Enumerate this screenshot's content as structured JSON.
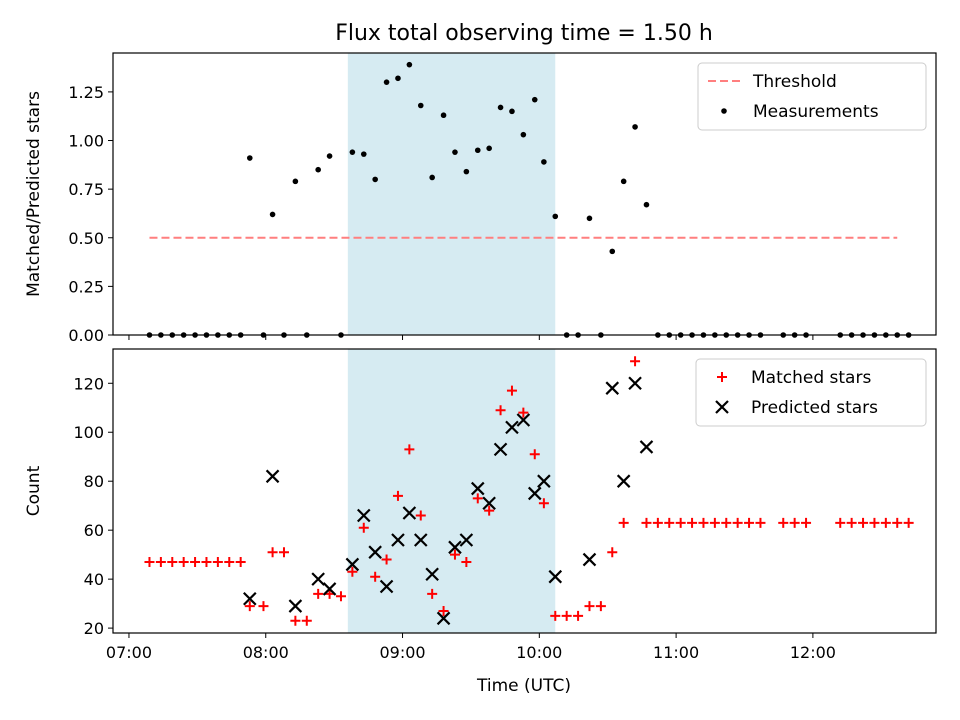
{
  "chart_data": [
    {
      "type": "scatter",
      "title": "Flux total observing time = 1.50 h",
      "xlabel": "",
      "ylabel": "Matched/Predicted stars",
      "xlim": [
        "06:53",
        "12:54"
      ],
      "ylim": [
        0,
        1.45
      ],
      "y_ticks": [
        "0.00",
        "0.25",
        "0.50",
        "0.75",
        "1.00",
        "1.25"
      ],
      "x_tick_labels_shown": false,
      "shaded_span": {
        "start": "08:36",
        "end": "10:07",
        "color": "#add8e6"
      },
      "legend_position": "upper right",
      "series": [
        {
          "name": "Threshold",
          "kind": "line",
          "style": "dashed",
          "color": "#ff7f7f",
          "x": [
            "07:09",
            "12:37"
          ],
          "y": [
            0.5,
            0.5
          ]
        },
        {
          "name": "Measurements",
          "kind": "points",
          "color": "#000000",
          "points": [
            [
              "07:09",
              0
            ],
            [
              "07:14",
              0
            ],
            [
              "07:19",
              0
            ],
            [
              "07:24",
              0
            ],
            [
              "07:29",
              0
            ],
            [
              "07:34",
              0
            ],
            [
              "07:39",
              0
            ],
            [
              "07:44",
              0
            ],
            [
              "07:49",
              0
            ],
            [
              "07:53",
              0.91
            ],
            [
              "07:59",
              0
            ],
            [
              "08:03",
              0.62
            ],
            [
              "08:08",
              0
            ],
            [
              "08:13",
              0.79
            ],
            [
              "08:18",
              0
            ],
            [
              "08:23",
              0.85
            ],
            [
              "08:28",
              0.92
            ],
            [
              "08:33",
              0
            ],
            [
              "08:38",
              0.94
            ],
            [
              "08:43",
              0.93
            ],
            [
              "08:48",
              0.8
            ],
            [
              "08:53",
              1.3
            ],
            [
              "08:58",
              1.32
            ],
            [
              "09:03",
              1.39
            ],
            [
              "09:08",
              1.18
            ],
            [
              "09:13",
              0.81
            ],
            [
              "09:18",
              1.13
            ],
            [
              "09:23",
              0.94
            ],
            [
              "09:28",
              0.84
            ],
            [
              "09:33",
              0.95
            ],
            [
              "09:38",
              0.96
            ],
            [
              "09:43",
              1.17
            ],
            [
              "09:48",
              1.15
            ],
            [
              "09:53",
              1.03
            ],
            [
              "09:58",
              1.21
            ],
            [
              "10:02",
              0.89
            ],
            [
              "10:07",
              0.61
            ],
            [
              "10:12",
              0
            ],
            [
              "10:17",
              0
            ],
            [
              "10:22",
              0.6
            ],
            [
              "10:27",
              0
            ],
            [
              "10:32",
              0.43
            ],
            [
              "10:37",
              0.79
            ],
            [
              "10:42",
              1.07
            ],
            [
              "10:47",
              0.67
            ],
            [
              "10:52",
              0
            ],
            [
              "10:57",
              0
            ],
            [
              "11:02",
              0
            ],
            [
              "11:07",
              0
            ],
            [
              "11:12",
              0
            ],
            [
              "11:17",
              0
            ],
            [
              "11:22",
              0
            ],
            [
              "11:27",
              0
            ],
            [
              "11:32",
              0
            ],
            [
              "11:37",
              0
            ],
            [
              "11:47",
              0
            ],
            [
              "11:52",
              0
            ],
            [
              "11:57",
              0
            ],
            [
              "12:12",
              0
            ],
            [
              "12:17",
              0
            ],
            [
              "12:22",
              0
            ],
            [
              "12:27",
              0
            ],
            [
              "12:32",
              0
            ],
            [
              "12:37",
              0
            ],
            [
              "12:42",
              0
            ]
          ]
        }
      ]
    },
    {
      "type": "scatter",
      "title": "",
      "xlabel": "Time (UTC)",
      "ylabel": "Count",
      "xlim": [
        "06:53",
        "12:54"
      ],
      "ylim": [
        18,
        134
      ],
      "y_ticks": [
        "20",
        "40",
        "60",
        "80",
        "100",
        "120"
      ],
      "x_ticks": [
        "07:00",
        "08:00",
        "09:00",
        "10:00",
        "11:00",
        "12:00"
      ],
      "shaded_span": {
        "start": "08:36",
        "end": "10:07",
        "color": "#add8e6"
      },
      "legend_position": "upper right",
      "series": [
        {
          "name": "Matched stars",
          "marker": "+",
          "color": "#ff0000",
          "points": [
            [
              "07:09",
              47
            ],
            [
              "07:14",
              47
            ],
            [
              "07:19",
              47
            ],
            [
              "07:24",
              47
            ],
            [
              "07:29",
              47
            ],
            [
              "07:34",
              47
            ],
            [
              "07:39",
              47
            ],
            [
              "07:44",
              47
            ],
            [
              "07:49",
              47
            ],
            [
              "07:53",
              29
            ],
            [
              "07:59",
              29
            ],
            [
              "08:03",
              51
            ],
            [
              "08:08",
              51
            ],
            [
              "08:13",
              23
            ],
            [
              "08:18",
              23
            ],
            [
              "08:23",
              34
            ],
            [
              "08:28",
              34
            ],
            [
              "08:33",
              33
            ],
            [
              "08:38",
              43
            ],
            [
              "08:43",
              61
            ],
            [
              "08:48",
              41
            ],
            [
              "08:53",
              48
            ],
            [
              "08:58",
              74
            ],
            [
              "09:03",
              93
            ],
            [
              "09:08",
              66
            ],
            [
              "09:13",
              34
            ],
            [
              "09:18",
              27
            ],
            [
              "09:23",
              50
            ],
            [
              "09:28",
              47
            ],
            [
              "09:33",
              73
            ],
            [
              "09:38",
              68
            ],
            [
              "09:43",
              109
            ],
            [
              "09:48",
              117
            ],
            [
              "09:53",
              108
            ],
            [
              "09:58",
              91
            ],
            [
              "10:02",
              71
            ],
            [
              "10:07",
              25
            ],
            [
              "10:12",
              25
            ],
            [
              "10:17",
              25
            ],
            [
              "10:22",
              29
            ],
            [
              "10:27",
              29
            ],
            [
              "10:32",
              51
            ],
            [
              "10:37",
              63
            ],
            [
              "10:42",
              129
            ],
            [
              "10:47",
              63
            ],
            [
              "10:52",
              63
            ],
            [
              "10:57",
              63
            ],
            [
              "11:02",
              63
            ],
            [
              "11:07",
              63
            ],
            [
              "11:12",
              63
            ],
            [
              "11:17",
              63
            ],
            [
              "11:22",
              63
            ],
            [
              "11:27",
              63
            ],
            [
              "11:32",
              63
            ],
            [
              "11:37",
              63
            ],
            [
              "11:47",
              63
            ],
            [
              "11:52",
              63
            ],
            [
              "11:57",
              63
            ],
            [
              "12:12",
              63
            ],
            [
              "12:17",
              63
            ],
            [
              "12:22",
              63
            ],
            [
              "12:27",
              63
            ],
            [
              "12:32",
              63
            ],
            [
              "12:37",
              63
            ],
            [
              "12:42",
              63
            ]
          ]
        },
        {
          "name": "Predicted stars",
          "marker": "x",
          "color": "#000000",
          "points": [
            [
              "07:53",
              32
            ],
            [
              "08:03",
              82
            ],
            [
              "08:13",
              29
            ],
            [
              "08:23",
              40
            ],
            [
              "08:28",
              36
            ],
            [
              "08:38",
              46
            ],
            [
              "08:43",
              66
            ],
            [
              "08:48",
              51
            ],
            [
              "08:53",
              37
            ],
            [
              "08:58",
              56
            ],
            [
              "09:03",
              67
            ],
            [
              "09:08",
              56
            ],
            [
              "09:13",
              42
            ],
            [
              "09:18",
              24
            ],
            [
              "09:23",
              53
            ],
            [
              "09:28",
              56
            ],
            [
              "09:33",
              77
            ],
            [
              "09:38",
              71
            ],
            [
              "09:43",
              93
            ],
            [
              "09:48",
              102
            ],
            [
              "09:53",
              105
            ],
            [
              "09:58",
              75
            ],
            [
              "10:02",
              80
            ],
            [
              "10:07",
              41
            ],
            [
              "10:22",
              48
            ],
            [
              "10:32",
              118
            ],
            [
              "10:37",
              80
            ],
            [
              "10:42",
              120
            ],
            [
              "10:47",
              94
            ]
          ]
        }
      ]
    }
  ]
}
